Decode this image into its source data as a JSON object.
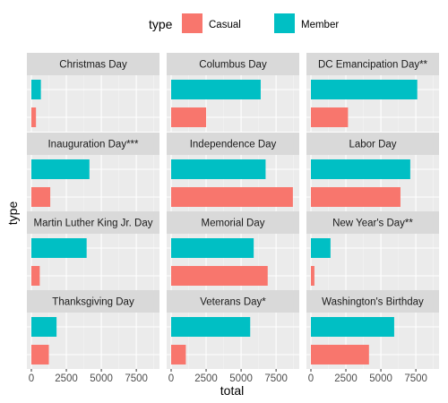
{
  "chart_data": {
    "type": "bar",
    "orientation": "horizontal",
    "faceted": true,
    "facet_layout": "3 columns x 4 rows",
    "legend": {
      "title": "type",
      "position": "top",
      "entries": [
        {
          "name": "Casual",
          "color": "#F8766D"
        },
        {
          "name": "Member",
          "color": "#00BFC4"
        }
      ]
    },
    "xlabel": "total",
    "ylabel": "type",
    "xlim": [
      0,
      8900
    ],
    "xticks": [
      0,
      2500,
      5000,
      7500
    ],
    "xtick_labels": [
      "0",
      "2500",
      "5000",
      "7500"
    ],
    "y_categories": [
      "Casual",
      "Member"
    ],
    "grid": true,
    "panel_background": "#EBEBEB",
    "strip_background": "#D9D9D9",
    "facets": [
      {
        "title": "Christmas Day",
        "Casual": 330,
        "Member": 680
      },
      {
        "title": "Columbus Day",
        "Casual": 2500,
        "Member": 6400
      },
      {
        "title": "DC Emancipation Day**",
        "Casual": 2650,
        "Member": 7600
      },
      {
        "title": "Inauguration Day***",
        "Casual": 1350,
        "Member": 4150
      },
      {
        "title": "Independence Day",
        "Casual": 8700,
        "Member": 6750
      },
      {
        "title": "Labor Day",
        "Casual": 6400,
        "Member": 7100
      },
      {
        "title": "Martin Luther King Jr. Day",
        "Casual": 600,
        "Member": 3950
      },
      {
        "title": "Memorial Day",
        "Casual": 6900,
        "Member": 5900
      },
      {
        "title": "New Year's Day**",
        "Casual": 250,
        "Member": 1400
      },
      {
        "title": "Thanksgiving Day",
        "Casual": 1250,
        "Member": 1800
      },
      {
        "title": "Veterans Day*",
        "Casual": 1050,
        "Member": 5650
      },
      {
        "title": "Washington's Birthday",
        "Casual": 4150,
        "Member": 5950
      }
    ]
  }
}
